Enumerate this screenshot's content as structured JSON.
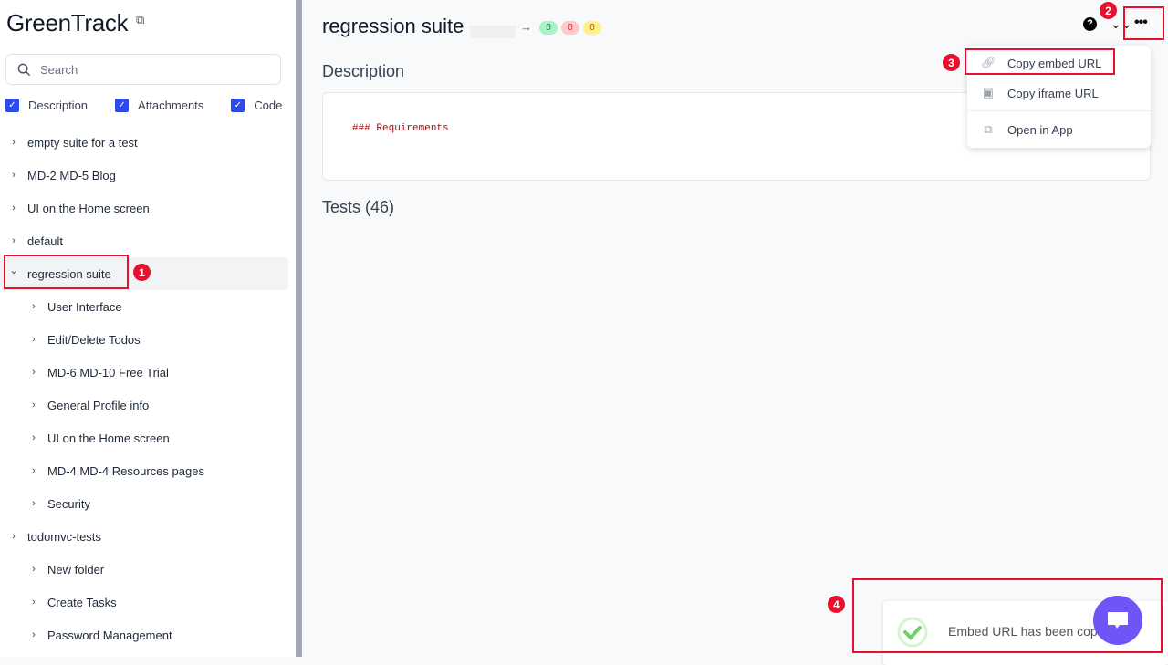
{
  "app": {
    "name": "GreenTrack",
    "external_icon": "external-link-icon"
  },
  "search": {
    "placeholder": "Search"
  },
  "filters": [
    {
      "label": "Description",
      "checked": true
    },
    {
      "label": "Attachments",
      "checked": true
    },
    {
      "label": "Code",
      "checked": true
    }
  ],
  "tree": [
    {
      "label": "empty suite for a test",
      "level": 0,
      "expanded": false
    },
    {
      "label": "MD-2 MD-5 Blog",
      "level": 0,
      "expanded": false
    },
    {
      "label": "UI on the Home screen",
      "level": 0,
      "expanded": false
    },
    {
      "label": "default",
      "level": 0,
      "expanded": false
    },
    {
      "label": "regression suite",
      "level": 0,
      "expanded": true,
      "selected": true
    },
    {
      "label": "User Interface",
      "level": 1
    },
    {
      "label": "Edit/Delete Todos",
      "level": 1
    },
    {
      "label": "MD-6 MD-10 Free Trial",
      "level": 1
    },
    {
      "label": "General Profile info",
      "level": 1
    },
    {
      "label": "UI on the Home screen",
      "level": 1
    },
    {
      "label": "MD-4 MD-4 Resources pages",
      "level": 1
    },
    {
      "label": "Security",
      "level": 1
    },
    {
      "label": "todomvc-tests",
      "level": 0,
      "expanded": false
    },
    {
      "label": "New folder",
      "level": 1
    },
    {
      "label": "Create Tasks",
      "level": 1
    },
    {
      "label": "Password Management",
      "level": 1
    }
  ],
  "main": {
    "title": "regression suite",
    "arrow": "→",
    "counts": {
      "passed": "0",
      "failed": "0",
      "skipped": "0"
    },
    "description_heading": "Description",
    "description_code": "### Requirements",
    "tests_heading": "Tests (46)"
  },
  "menu": {
    "items": [
      {
        "label": "Copy embed URL",
        "icon": "link-icon"
      },
      {
        "label": "Copy iframe URL",
        "icon": "chip-icon"
      },
      {
        "label": "Open in App",
        "icon": "external-link-icon"
      }
    ]
  },
  "toast": {
    "message": "Embed URL has been copied"
  },
  "annotations": [
    "1",
    "2",
    "3",
    "4"
  ],
  "colors": {
    "accent": "#2c4bea",
    "highlight": "#e8112d",
    "chat": "#6f55f5"
  }
}
